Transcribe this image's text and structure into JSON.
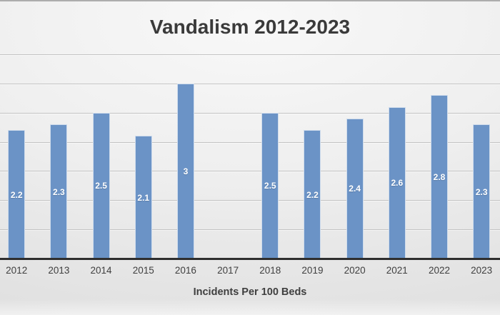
{
  "chart_data": {
    "type": "bar",
    "title": "Vandalism 2012-2023",
    "categories": [
      "2012",
      "2013",
      "2014",
      "2015",
      "2016",
      "2017",
      "2018",
      "2019",
      "2020",
      "2021",
      "2022",
      "2023"
    ],
    "values": [
      2.2,
      2.3,
      2.5,
      2.1,
      3,
      null,
      2.5,
      2.2,
      2.4,
      2.6,
      2.8,
      2.3
    ],
    "value_labels": [
      "2.2",
      "2.3",
      "2.5",
      "2.1",
      "3",
      "",
      "2.5",
      "2.2",
      "2.4",
      "2.6",
      "2.8",
      "2.3"
    ],
    "xlabel": "Incidents Per 100 Beds",
    "ylabel": "",
    "ylim": [
      0,
      3.5
    ],
    "grid": true,
    "grid_interval": 0.5,
    "y_axis_labels_visible": false,
    "legend": "none",
    "data_label_position": "center",
    "colors": {
      "bar_fill": "#6b93c6",
      "bar_border": "#cfdcec",
      "bar_label_text": "#ffffff",
      "gridline": "#c3c3c3",
      "axis_line": "#2e2e2e",
      "title_text": "#3a3a3a",
      "tick_text": "#3f3f3f",
      "axis_title_text": "#3f3f3f"
    }
  }
}
